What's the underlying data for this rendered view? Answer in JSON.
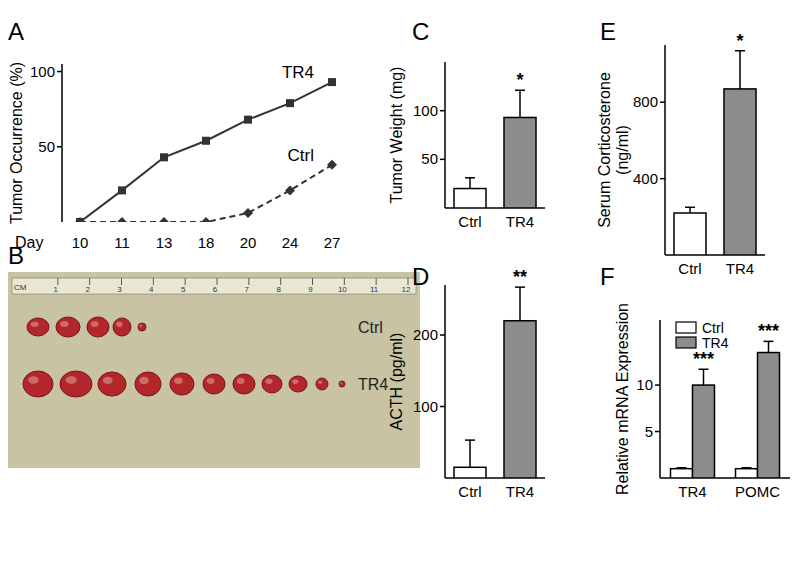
{
  "chart_data": [
    {
      "type": "line",
      "title": "A",
      "ylabel": "Tumor Occurrence (%)",
      "xlabel": "Day",
      "categories": [
        "10",
        "11",
        "13",
        "18",
        "20",
        "24",
        "27"
      ],
      "series": [
        {
          "name": "TR4",
          "color": "#333333",
          "marker": "square",
          "line_style": "solid",
          "values": [
            0,
            21,
            43,
            54,
            68,
            79,
            93
          ]
        },
        {
          "name": "Ctrl",
          "color": "#333333",
          "marker": "diamond",
          "line_style": "dashed",
          "values": [
            0,
            0,
            0,
            0,
            6,
            21,
            38
          ]
        }
      ],
      "ylim": [
        0,
        105
      ],
      "yticks": [
        50,
        100
      ]
    },
    {
      "type": "image",
      "title": "B",
      "ruler_unit": "CM",
      "ruler_labels": [
        1,
        2,
        3,
        4,
        5,
        6,
        7,
        8,
        9,
        10,
        11,
        12
      ],
      "row_labels": [
        "Ctrl",
        "TR4"
      ]
    },
    {
      "type": "bar",
      "title": "C",
      "ylabel": "Tumor Weight (mg)",
      "categories": [
        "Ctrl",
        "TR4"
      ],
      "values": [
        20,
        93
      ],
      "errors": [
        11,
        28
      ],
      "colors": [
        "#ffffff",
        "#8c8c8c"
      ],
      "ylim": [
        0,
        150
      ],
      "yticks": [
        50,
        100
      ],
      "annotations": [
        {
          "text": "*",
          "x": "TR4"
        }
      ]
    },
    {
      "type": "bar",
      "title": "D",
      "ylabel": "ACTH (pg/ml)",
      "categories": [
        "Ctrl",
        "TR4"
      ],
      "values": [
        15,
        220
      ],
      "errors": [
        38,
        47
      ],
      "colors": [
        "#ffffff",
        "#8c8c8c"
      ],
      "ylim": [
        0,
        270
      ],
      "yticks": [
        100,
        200
      ],
      "annotations": [
        {
          "text": "**",
          "x": "TR4"
        }
      ]
    },
    {
      "type": "bar",
      "title": "E",
      "ylabel": "Serum Corticosterone (ng/ml)",
      "categories": [
        "Ctrl",
        "TR4"
      ],
      "values": [
        220,
        870
      ],
      "errors": [
        30,
        200
      ],
      "colors": [
        "#ffffff",
        "#8c8c8c"
      ],
      "ylim": [
        0,
        1100
      ],
      "yticks": [
        400,
        800
      ],
      "annotations": [
        {
          "text": "*",
          "x": "TR4"
        }
      ]
    },
    {
      "type": "bar",
      "title": "F",
      "ylabel": "Relative mRNA Expression",
      "categories": [
        "TR4",
        "POMC"
      ],
      "series": [
        {
          "name": "Ctrl",
          "color": "#ffffff",
          "values": [
            1,
            1
          ],
          "errors": [
            0.1,
            0.1
          ]
        },
        {
          "name": "TR4",
          "color": "#8c8c8c",
          "values": [
            10,
            13.5
          ],
          "errors": [
            1.7,
            1.2
          ]
        }
      ],
      "ylim": [
        0,
        17
      ],
      "yticks": [
        5,
        10
      ],
      "legend": "upper left",
      "annotations": [
        {
          "text": "***",
          "x": "TR4"
        },
        {
          "text": "***",
          "x": "POMC"
        }
      ]
    }
  ]
}
